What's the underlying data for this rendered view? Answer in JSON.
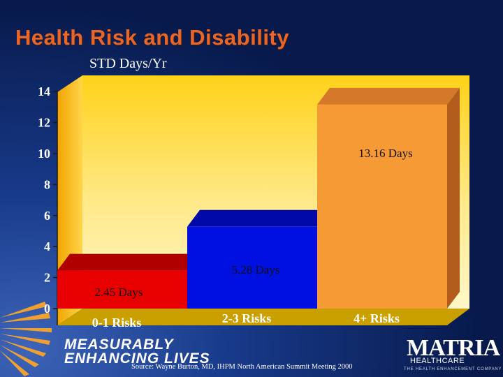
{
  "slide": {
    "title": "Health Risk and Disability",
    "colors": {
      "title": "#e8662a",
      "background": "#0b1f55",
      "wall_top": "#ffd21a",
      "wall_bottom": "#fff4b0"
    }
  },
  "chart_data": {
    "type": "bar",
    "title": "Health Risk and Disability",
    "ylabel": "STD Days/Yr",
    "xlabel": "",
    "ylim": [
      0,
      14
    ],
    "yticks": [
      0,
      2,
      4,
      6,
      8,
      10,
      12,
      14
    ],
    "categories": [
      "0-1 Risks",
      "2-3 Risks",
      "4+ Risks"
    ],
    "values": [
      2.45,
      5.28,
      13.16
    ],
    "data_labels": [
      "2.45 Days",
      "5.28 Days",
      "13.16 Days"
    ],
    "bar_colors": [
      "#e80000",
      "#0010e0",
      "#f59a35"
    ],
    "bar_top_colors": [
      "#b00000",
      "#0008a8",
      "#d4782a"
    ],
    "bar_side_colors": [
      "#800000",
      "#000670",
      "#b25d1c"
    ],
    "style": "3d",
    "grid": false
  },
  "footer": {
    "tagline_line1": "MEASURABLY",
    "tagline_line2": "ENHANCING LIVES",
    "source": "Source: Wayne Burton, MD, IHPM North American Summit Meeting 2000",
    "logo_name": "MATRIA",
    "logo_sub": "HEALTHCARE",
    "logo_tag": "THE HEALTH ENHANCEMENT COMPANY"
  }
}
